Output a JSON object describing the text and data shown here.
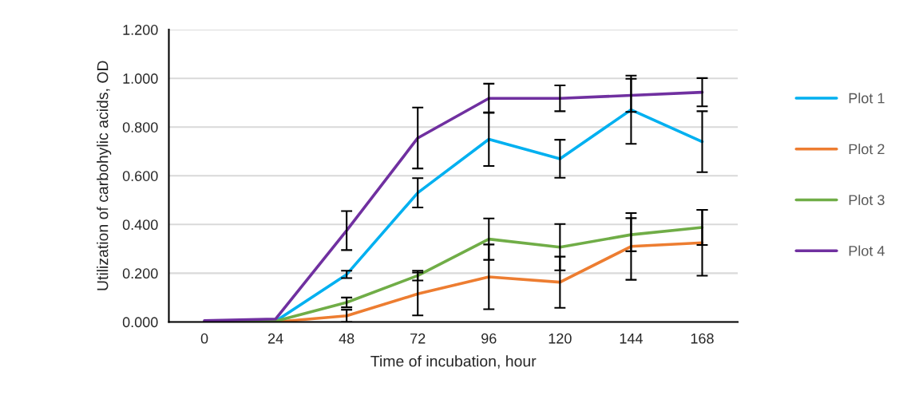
{
  "chart_data": {
    "type": "line",
    "ylabel": "Utilization of carbohylic acids, OD",
    "xlabel": "Time of incubation, hour",
    "categories": [
      "0",
      "24",
      "48",
      "72",
      "96",
      "120",
      "144",
      "168"
    ],
    "series": [
      {
        "name": "Plot 1",
        "color": "#00b0f0",
        "values": [
          0.0,
          0.003,
          0.195,
          0.53,
          0.75,
          0.67,
          0.871,
          0.74
        ],
        "errors": [
          null,
          null,
          0.015,
          0.06,
          0.11,
          0.078,
          0.14,
          0.125
        ]
      },
      {
        "name": "Plot 2",
        "color": "#ed7d31",
        "values": [
          0.0,
          0.0,
          0.025,
          0.115,
          0.185,
          0.163,
          0.31,
          0.325
        ],
        "errors": [
          null,
          null,
          0.025,
          0.088,
          0.133,
          0.105,
          0.137,
          0.135
        ]
      },
      {
        "name": "Plot 3",
        "color": "#70ad47",
        "values": [
          0.0,
          0.003,
          0.08,
          0.19,
          0.34,
          0.307,
          0.358,
          0.388
        ],
        "errors": [
          null,
          null,
          0.02,
          0.02,
          0.085,
          0.095,
          0.068,
          0.072
        ]
      },
      {
        "name": "Plot 4",
        "color": "#7030a0",
        "values": [
          0.005,
          0.012,
          0.375,
          0.755,
          0.918,
          0.918,
          0.93,
          0.943
        ],
        "errors": [
          null,
          null,
          0.08,
          0.125,
          0.06,
          0.053,
          0.068,
          0.058
        ]
      }
    ],
    "ylim": [
      0,
      1.2
    ],
    "yticks": [
      {
        "value": 0,
        "label": "0.000"
      },
      {
        "value": 0.2,
        "label": "0.200"
      },
      {
        "value": 0.4,
        "label": "0.400"
      },
      {
        "value": 0.6,
        "label": "0.600"
      },
      {
        "value": 0.8,
        "label": "0.800"
      },
      {
        "value": 1.0,
        "label": "1.000"
      },
      {
        "value": 1.2,
        "label": "1.200"
      }
    ],
    "grid": "y",
    "legend": "right",
    "marker": "none",
    "line_style": "solid"
  }
}
